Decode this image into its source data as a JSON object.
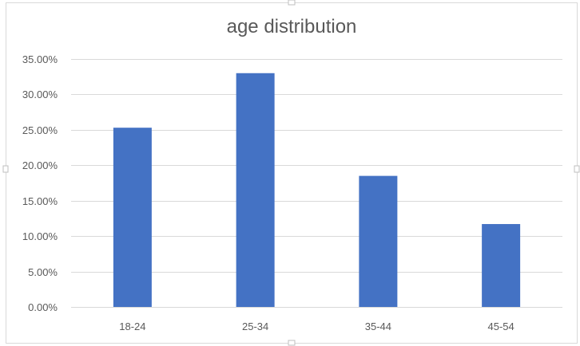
{
  "chart_data": {
    "type": "bar",
    "title": "age distribution",
    "xlabel": "",
    "ylabel": "",
    "categories": [
      "18-24",
      "25-34",
      "35-44",
      "45-54"
    ],
    "values": [
      0.253,
      0.33,
      0.185,
      0.117
    ],
    "ylim": [
      0,
      0.35
    ],
    "yticks": [
      0,
      0.05,
      0.1,
      0.15,
      0.2,
      0.25,
      0.3,
      0.35
    ],
    "ytick_labels": [
      "0.00%",
      "5.00%",
      "10.00%",
      "15.00%",
      "20.00%",
      "25.00%",
      "30.00%",
      "35.00%"
    ],
    "grid": true,
    "legend": "none",
    "bar_color": "#4472C4",
    "gridline_color": "#D9D9D9",
    "text_color": "#595959"
  }
}
